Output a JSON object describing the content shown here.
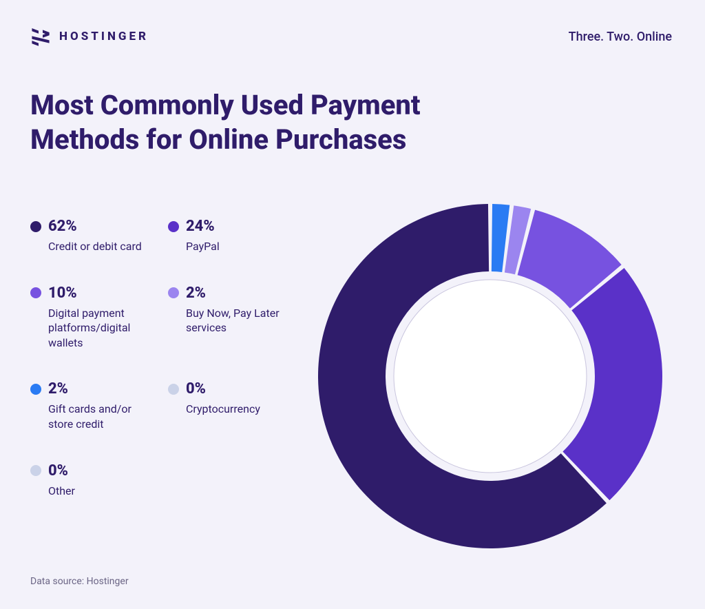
{
  "brand": {
    "name": "HOSTINGER",
    "tagline": "Three. Two. Online",
    "logo_color": "#2f1c6a"
  },
  "title": "Most Commonly Used Payment Methods for Online Purchases",
  "footer": "Data source: Hostinger",
  "chart": {
    "type": "donut",
    "background_color": "#f3f2fa",
    "ring_gap_color": "#f3f2fa",
    "inner_circle_fill": "#ffffff",
    "inner_circle_stroke": "#c9c5de",
    "outer_radius": 250,
    "inner_radius": 152,
    "inner_circle_radius": 140,
    "start_angle_deg": 0,
    "slice_gap_deg": 1.4,
    "series": [
      {
        "label": "Credit or debit card",
        "value": 62,
        "percent_label": "62%",
        "color": "#2f1c6a"
      },
      {
        "label": "PayPal",
        "value": 24,
        "percent_label": "24%",
        "color": "#5a31c8"
      },
      {
        "label": "Digital payment platforms/digital wallets",
        "value": 10,
        "percent_label": "10%",
        "color": "#7752e0"
      },
      {
        "label": "Buy Now, Pay Later services",
        "value": 2,
        "percent_label": "2%",
        "color": "#9b85ef"
      },
      {
        "label": "Gift cards and/or store credit",
        "value": 2,
        "percent_label": "2%",
        "color": "#2a7bf3"
      },
      {
        "label": "Cryptocurrency",
        "value": 0,
        "percent_label": "0%",
        "color": "#cad2e8"
      },
      {
        "label": "Other",
        "value": 0,
        "percent_label": "0%",
        "color": "#cad2e8"
      }
    ],
    "legend_order": [
      0,
      1,
      2,
      3,
      4,
      5,
      6
    ],
    "legend_text_color": "#2f1c6a",
    "legend_pct_fontsize": 22,
    "legend_label_fontsize": 16
  }
}
